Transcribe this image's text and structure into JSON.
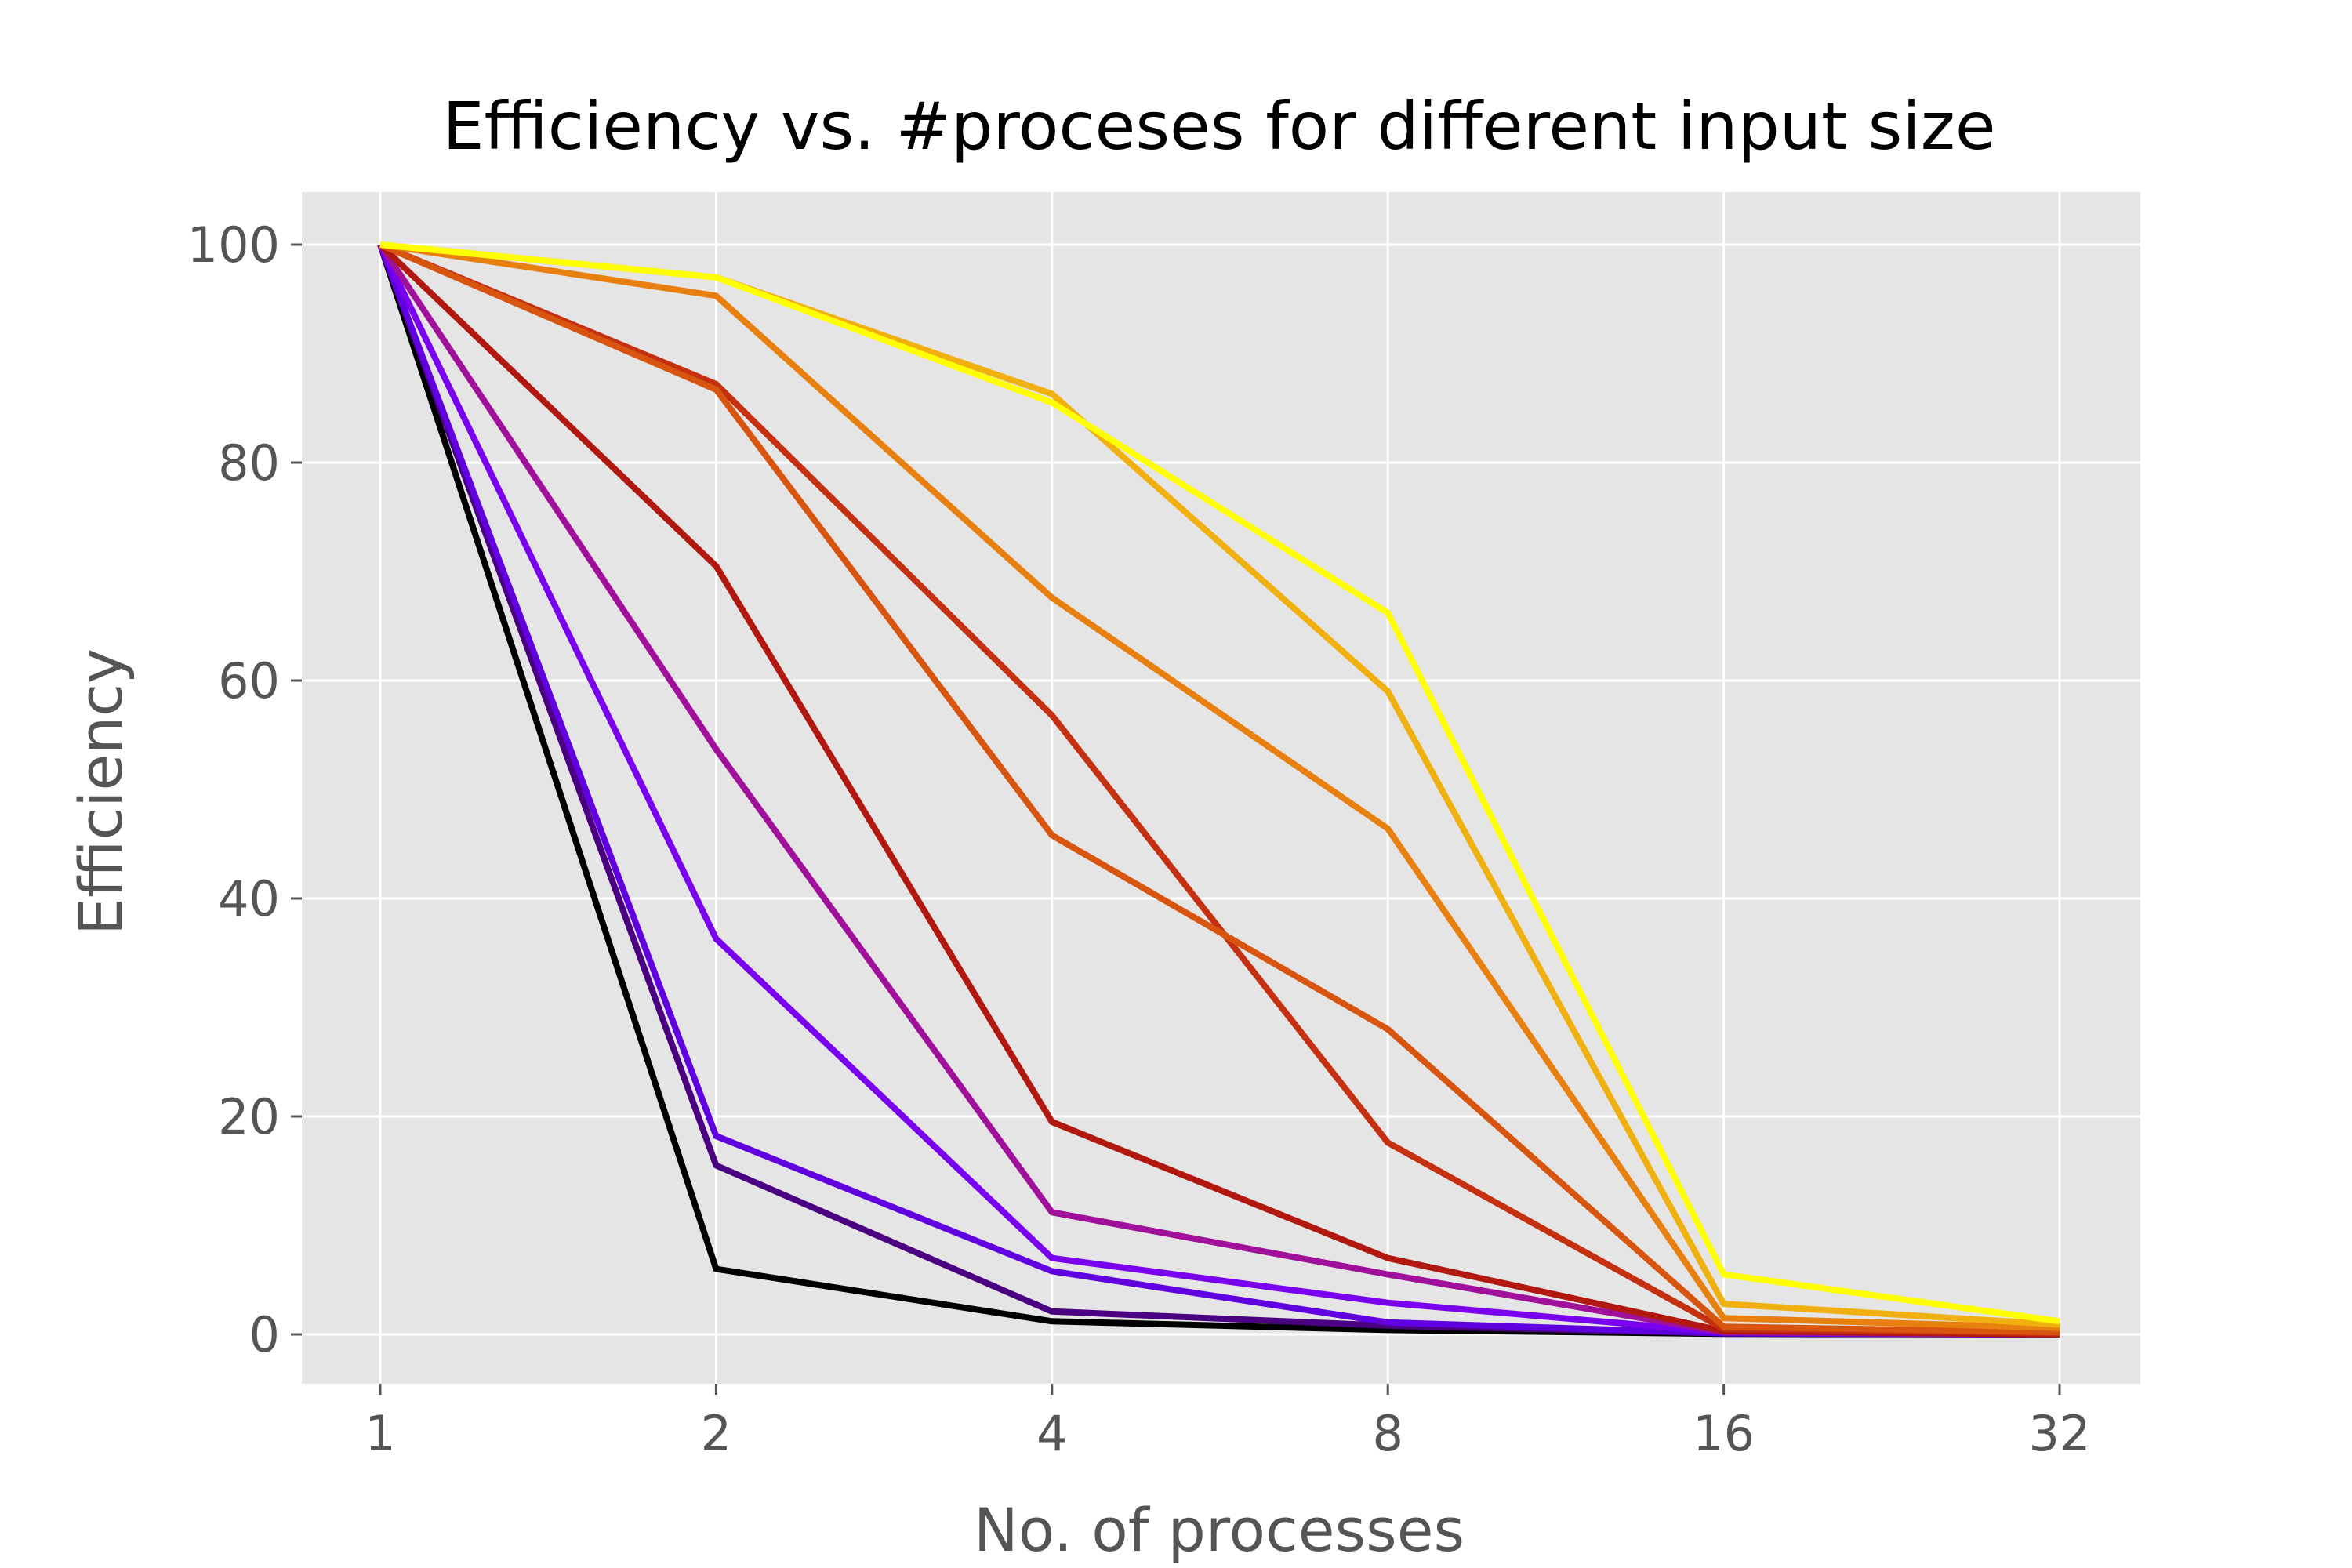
{
  "chart_data": {
    "type": "line",
    "title": "Efficiency vs. #proceses for different input size",
    "xlabel": "No. of processes",
    "ylabel": "Efficiency",
    "x": [
      1,
      2,
      4,
      8,
      16,
      32
    ],
    "x_tick_labels": [
      "1",
      "2",
      "4",
      "8",
      "16",
      "32"
    ],
    "x_scale": "log2",
    "ylim": [
      -5,
      105
    ],
    "y_ticks": [
      0,
      20,
      40,
      60,
      80,
      100
    ],
    "y_tick_labels": [
      "0",
      "20",
      "40",
      "60",
      "80",
      "100"
    ],
    "grid": true,
    "legend": false,
    "background_color": "#e5e5e5",
    "grid_color": "#ffffff",
    "series": [
      {
        "color": "#000000",
        "values": [
          100,
          6.0,
          1.2,
          0.4,
          0.05,
          0.0
        ]
      },
      {
        "color": "#4b0082",
        "values": [
          100,
          15.5,
          2.1,
          0.8,
          0.1,
          0.0
        ]
      },
      {
        "color": "#6000e0",
        "values": [
          100,
          18.2,
          5.8,
          1.1,
          0.1,
          0.0
        ]
      },
      {
        "color": "#7a00f0",
        "values": [
          100,
          36.3,
          7.0,
          2.9,
          0.2,
          0.0
        ]
      },
      {
        "color": "#a0109a",
        "values": [
          100,
          53.7,
          11.2,
          5.5,
          0.2,
          0.0
        ]
      },
      {
        "color": "#b01810",
        "values": [
          100,
          70.5,
          19.5,
          7.0,
          0.3,
          0.0
        ]
      },
      {
        "color": "#c43010",
        "values": [
          100,
          87.2,
          56.8,
          17.6,
          0.5,
          0.1
        ]
      },
      {
        "color": "#d85510",
        "values": [
          100,
          86.7,
          45.8,
          28.0,
          0.7,
          0.2
        ]
      },
      {
        "color": "#e88010",
        "values": [
          100,
          95.3,
          67.6,
          46.4,
          1.5,
          0.6
        ]
      },
      {
        "color": "#f0b010",
        "values": [
          100,
          97.0,
          86.3,
          59.0,
          2.8,
          0.9
        ]
      },
      {
        "color": "#ffff00",
        "values": [
          100,
          97.0,
          85.5,
          66.2,
          5.5,
          1.2
        ]
      }
    ]
  }
}
